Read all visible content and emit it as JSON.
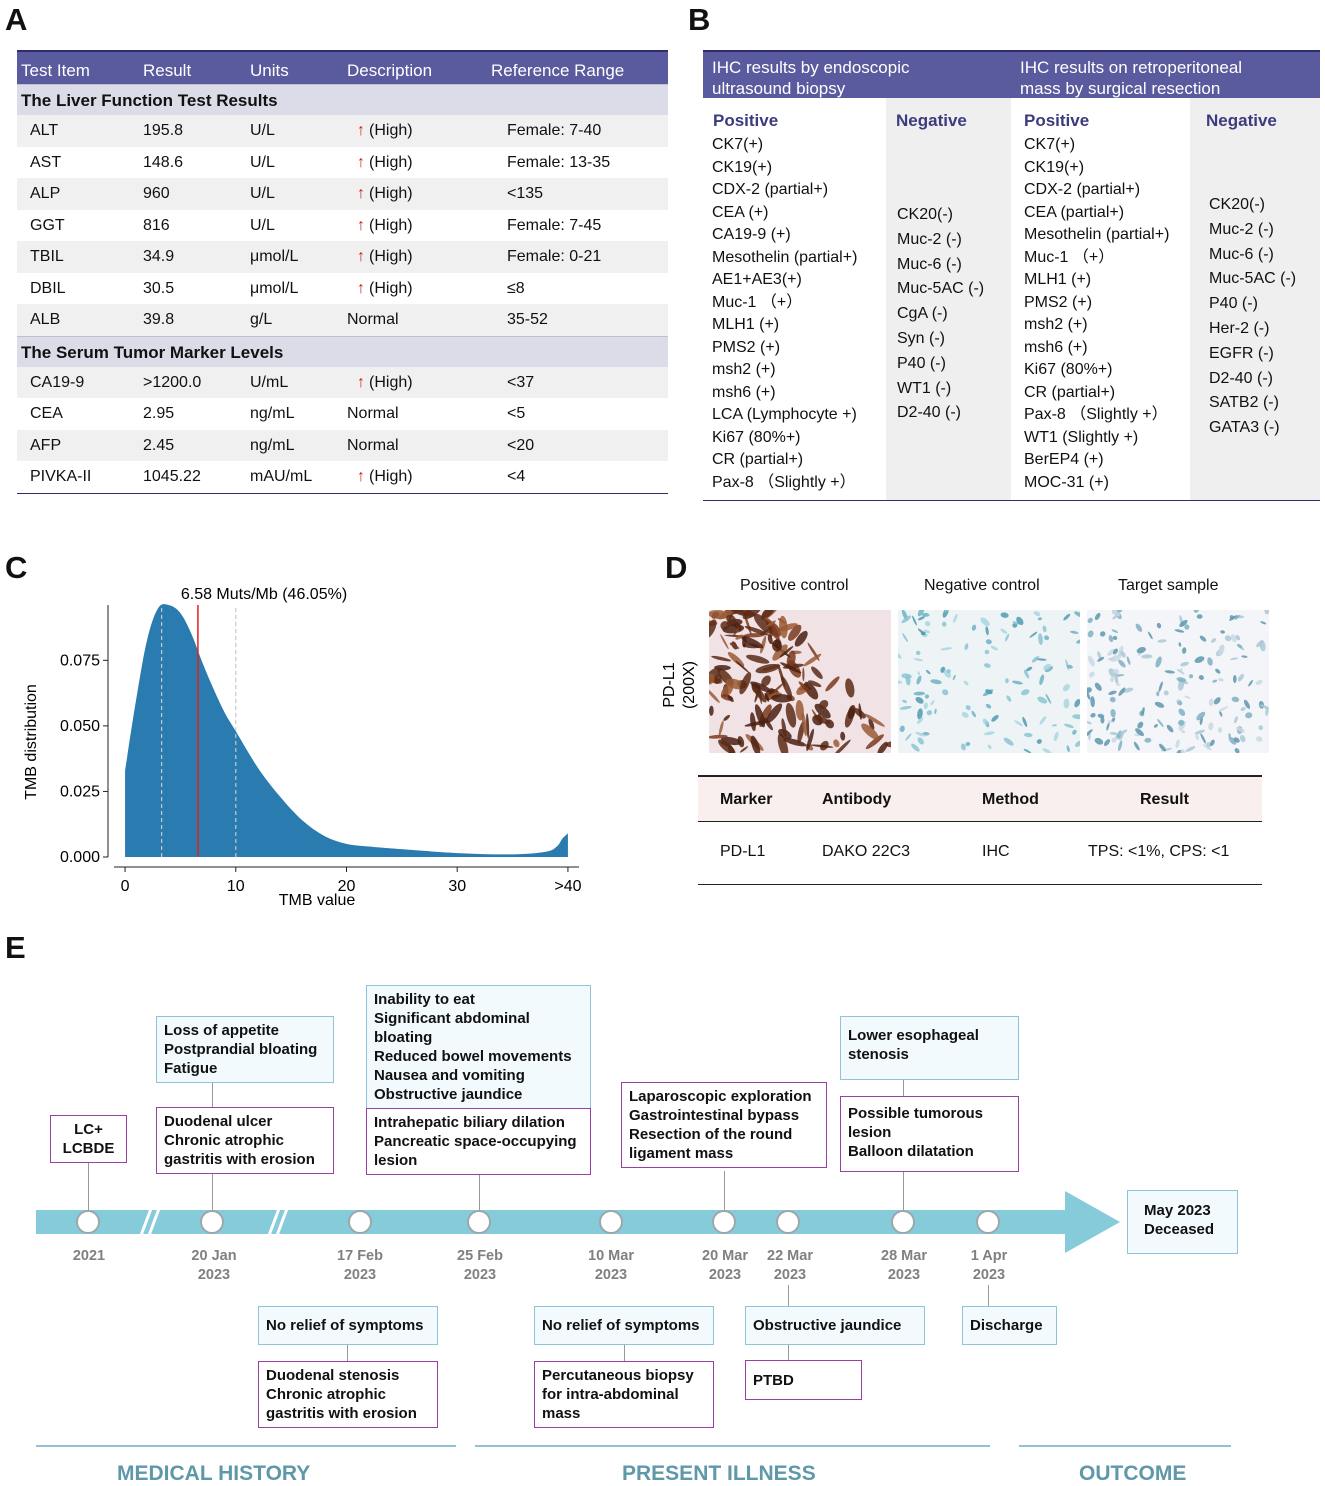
{
  "panels": {
    "a": "A",
    "b": "B",
    "c": "C",
    "d": "D",
    "e": "E"
  },
  "panel_a": {
    "headers": [
      "Test Item",
      "Result",
      "Units",
      "Description",
      "Reference Range"
    ],
    "sections": [
      {
        "title": "The Liver Function Test Results",
        "rows": [
          {
            "item": "ALT",
            "result": "195.8",
            "units": "U/L",
            "arrow": "↑",
            "desc": "(High)",
            "ref": "Female: 7-40"
          },
          {
            "item": "AST",
            "result": "148.6",
            "units": "U/L",
            "arrow": "↑",
            "desc": "(High)",
            "ref": "Female: 13-35"
          },
          {
            "item": "ALP",
            "result": "960",
            "units": "U/L",
            "arrow": "↑",
            "desc": "(High)",
            "ref": "<135"
          },
          {
            "item": "GGT",
            "result": "816",
            "units": "U/L",
            "arrow": "↑",
            "desc": "(High)",
            "ref": "Female: 7-45"
          },
          {
            "item": "TBIL",
            "result": "34.9",
            "units": "μmol/L",
            "arrow": "↑",
            "desc": "(High)",
            "ref": "Female: 0-21"
          },
          {
            "item": "DBIL",
            "result": "30.5",
            "units": "μmol/L",
            "arrow": "↑",
            "desc": "(High)",
            "ref": "≤8"
          },
          {
            "item": "ALB",
            "result": "39.8",
            "units": "g/L",
            "arrow": "",
            "desc": "Normal",
            "ref": "35-52"
          }
        ]
      },
      {
        "title": "The Serum Tumor Marker Levels",
        "rows": [
          {
            "item": "CA19-9",
            "result": ">1200.0",
            "units": "U/mL",
            "arrow": "↑",
            "desc": "(High)",
            "ref": "<37"
          },
          {
            "item": "CEA",
            "result": "2.95",
            "units": "ng/mL",
            "arrow": "",
            "desc": "Normal",
            "ref": "<5"
          },
          {
            "item": "AFP",
            "result": "2.45",
            "units": "ng/mL",
            "arrow": "",
            "desc": "Normal",
            "ref": "<20"
          },
          {
            "item": "PIVKA-II",
            "result": "1045.22",
            "units": "mAU/mL",
            "arrow": "↑",
            "desc": "(High)",
            "ref": "<4"
          }
        ]
      }
    ]
  },
  "panel_b": {
    "header_left": [
      "IHC results by endoscopic",
      "ultrasound biopsy"
    ],
    "header_right": [
      "IHC results on retroperitoneal",
      "mass by surgical resection"
    ],
    "positive_label": "Positive",
    "negative_label": "Negative",
    "biopsy_positive": [
      "CK7(+)",
      "CK19(+)",
      "CDX-2 (partial+)",
      "CEA (+)",
      "CA19-9 (+)",
      "Mesothelin (partial+)",
      "AE1+AE3(+)",
      "Muc-1 （+）",
      "MLH1 (+)",
      "PMS2 (+)",
      "msh2 (+)",
      "msh6 (+)",
      "LCA (Lymphocyte +)",
      "Ki67 (80%+)",
      "CR (partial+)",
      "Pax-8 （Slightly +）"
    ],
    "biopsy_negative": [
      "CK20(-)",
      "Muc-2 (-)",
      "Muc-6 (-)",
      "Muc-5AC (-)",
      "CgA (-)",
      "Syn (-)",
      "P40 (-)",
      "WT1 (-)",
      "D2-40 (-)"
    ],
    "resection_positive": [
      "CK7(+)",
      "CK19(+)",
      "CDX-2 (partial+)",
      "CEA (partial+)",
      "Mesothelin (partial+)",
      "Muc-1 （+）",
      "MLH1 (+)",
      "PMS2 (+)",
      "msh2 (+)",
      "msh6 (+)",
      "Ki67 (80%+)",
      "CR (partial+)",
      "Pax-8 （Slightly +）",
      "WT1 (Slightly +)",
      "BerEP4 (+)",
      "MOC-31 (+)"
    ],
    "resection_negative": [
      "CK20(-)",
      "Muc-2 (-)",
      "Muc-6 (-)",
      "Muc-5AC (-)",
      "P40 (-)",
      "Her-2 (-)",
      "EGFR (-)",
      "D2-40 (-)",
      "SATB2 (-)",
      "GATA3 (-)"
    ]
  },
  "chart_data": {
    "type": "area",
    "title": "6.58 Muts/Mb (46.05%)",
    "xlabel": "TMB value",
    "ylabel": "TMB distribution",
    "xlim": [
      -1,
      41
    ],
    "ylim": [
      0,
      0.098
    ],
    "xticks": [
      "0",
      "10",
      "20",
      "30",
      ">40"
    ],
    "xtick_values": [
      0,
      10,
      20,
      30,
      40
    ],
    "yticks": [
      "0.000",
      "0.025",
      "0.050",
      "0.075"
    ],
    "ytick_values": [
      0,
      0.025,
      0.05,
      0.075
    ],
    "x": [
      0,
      1,
      2,
      3,
      4,
      5,
      6,
      7,
      8,
      9,
      10,
      12,
      14,
      16,
      18,
      20,
      22,
      25,
      30,
      35,
      38,
      39,
      39.5,
      40
    ],
    "y": [
      0.033,
      0.06,
      0.083,
      0.095,
      0.096,
      0.093,
      0.085,
      0.074,
      0.064,
      0.055,
      0.048,
      0.034,
      0.023,
      0.014,
      0.008,
      0.005,
      0.004,
      0.003,
      0.0015,
      0.001,
      0.002,
      0.004,
      0.007,
      0.009
    ],
    "marker": 6.58,
    "dashed_lines": [
      3.3,
      10
    ],
    "fill_color": "#2a7bb0",
    "marker_color": "#e0201a"
  },
  "panel_d": {
    "ylabel_line1": "PD-L1",
    "ylabel_line2": "(200X)",
    "captions": [
      "Positive control",
      "Negative control",
      "Target sample"
    ],
    "table_headers": [
      "Marker",
      "Antibody",
      "Method",
      "Result"
    ],
    "table_row": [
      "PD-L1",
      "DAKO 22C3",
      "IHC",
      "TPS: <1%, CPS: <1"
    ]
  },
  "panel_e": {
    "dates": [
      [
        "2021",
        ""
      ],
      [
        "20 Jan",
        "2023"
      ],
      [
        "17 Feb",
        "2023"
      ],
      [
        "25 Feb",
        "2023"
      ],
      [
        "10 Mar",
        "2023"
      ],
      [
        "20 Mar",
        "2023"
      ],
      [
        "22 Mar",
        "2023"
      ],
      [
        "28 Mar",
        "2023"
      ],
      [
        "1 Apr",
        "2023"
      ]
    ],
    "outcome": [
      "May 2023",
      "Deceased"
    ],
    "lc": [
      "LC+",
      "LCBDE"
    ],
    "jan_symptoms": [
      "Loss of appetite",
      "Postprandial bloating",
      "Fatigue"
    ],
    "jan_diagnosis": [
      "Duodenal ulcer",
      "Chronic atrophic",
      "gastritis with erosion"
    ],
    "feb25_symptoms": [
      "Inability to eat",
      "Significant abdominal",
      "bloating",
      "Reduced bowel movements",
      "Nausea and vomiting",
      "Obstructive jaundice"
    ],
    "feb25_findings": [
      "Intrahepatic biliary dilation",
      "Pancreatic space-occupying",
      "lesion"
    ],
    "mar20_surgery": [
      "Laparoscopic exploration",
      "Gastrointestinal bypass",
      "Resection of the  round",
      "ligament mass"
    ],
    "mar28_symptoms": [
      "Lower esophageal",
      "stenosis"
    ],
    "mar28_findings": [
      "Possible tumorous",
      "lesion",
      "Balloon dilatation"
    ],
    "feb17_status": "No relief of symptoms",
    "feb17_diagnosis": [
      "Duodenal stenosis",
      "Chronic atrophic",
      "gastritis with erosion"
    ],
    "mar10_status": "No relief of symptoms",
    "mar10_procedure": [
      "Percutaneous biopsy",
      "for intra-abdominal",
      "mass"
    ],
    "mar22_status": "Obstructive jaundice",
    "mar22_procedure": "PTBD",
    "apr1_status": "Discharge",
    "phases": [
      "MEDICAL HISTORY",
      "PRESENT ILLNESS",
      "OUTCOME"
    ],
    "colors": {
      "arrow": "#85cbd9",
      "phase_text": "#5f98a8",
      "purple": "#9a3ea3",
      "blue_border": "#8fc3d8"
    }
  }
}
